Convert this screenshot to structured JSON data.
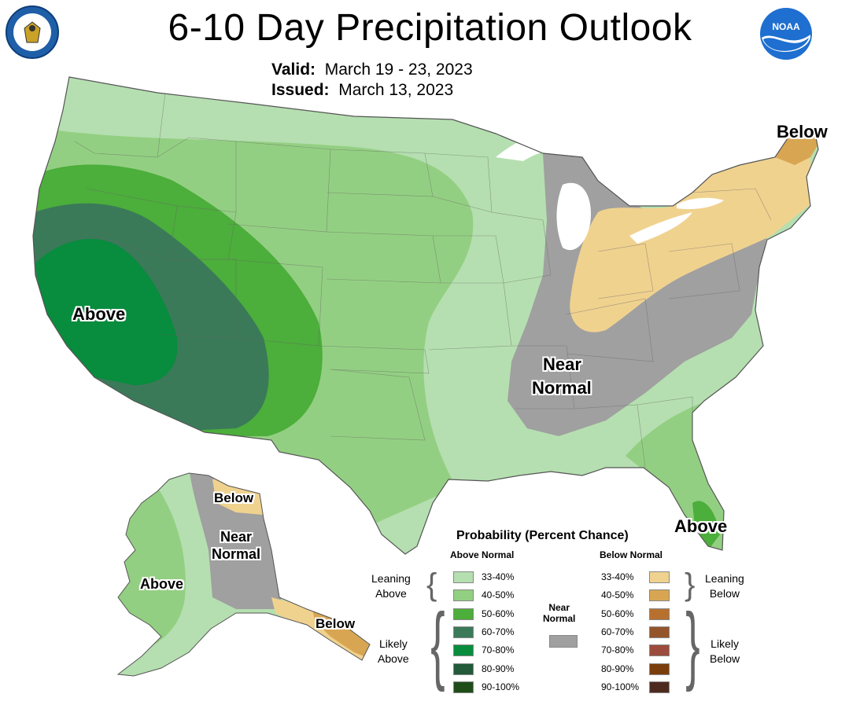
{
  "header": {
    "title": "6-10 Day Precipitation Outlook",
    "valid_label": "Valid:",
    "valid_value": "March 19 - 23, 2023",
    "issued_label": "Issued:",
    "issued_value": "March 13, 2023"
  },
  "logos": {
    "left": "department-of-commerce-seal",
    "right_text": "NOAA"
  },
  "map_labels": {
    "west_above": "Above",
    "near_normal_1": "Near",
    "near_normal_2": "Normal",
    "maine_below": "Below",
    "florida_above": "Above",
    "ak_above": "Above",
    "ak_near_1": "Near",
    "ak_near_2": "Normal",
    "ak_below_north": "Below",
    "ak_below_south": "Below"
  },
  "legend": {
    "title": "Probability (Percent Chance)",
    "above_header": "Above Normal",
    "below_header": "Below Normal",
    "near_normal_1": "Near",
    "near_normal_2": "Normal",
    "leaning_above_1": "Leaning",
    "leaning_above_2": "Above",
    "likely_above_1": "Likely",
    "likely_above_2": "Above",
    "leaning_below_1": "Leaning",
    "leaning_below_2": "Below",
    "likely_below_1": "Likely",
    "likely_below_2": "Below",
    "above_bins": [
      {
        "label": "33-40%",
        "color": "#b5dfb0"
      },
      {
        "label": "40-50%",
        "color": "#93cf82"
      },
      {
        "label": "50-60%",
        "color": "#4cae3b"
      },
      {
        "label": "60-70%",
        "color": "#3a7a59"
      },
      {
        "label": "70-80%",
        "color": "#088c3d"
      },
      {
        "label": "80-90%",
        "color": "#225a3a"
      },
      {
        "label": "90-100%",
        "color": "#1f4d1a"
      }
    ],
    "below_bins": [
      {
        "label": "33-40%",
        "color": "#f0d28f"
      },
      {
        "label": "40-50%",
        "color": "#d8a652"
      },
      {
        "label": "50-60%",
        "color": "#b8702f"
      },
      {
        "label": "60-70%",
        "color": "#94552c"
      },
      {
        "label": "70-80%",
        "color": "#9c4c3c"
      },
      {
        "label": "80-90%",
        "color": "#7a3e0c"
      },
      {
        "label": "90-100%",
        "color": "#4d2a20"
      }
    ],
    "near_color": "#a0a0a0"
  }
}
